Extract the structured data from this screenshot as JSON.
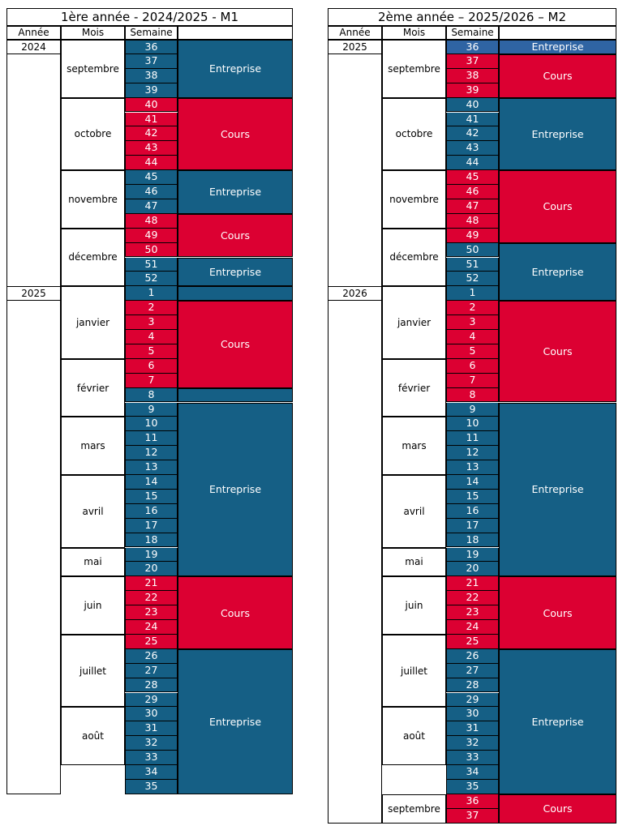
{
  "colors": {
    "entreprise": "#155f85",
    "cours": "#dc0032",
    "entreprise_light": "#2f64a3"
  },
  "headers": {
    "annee": "Année",
    "mois": "Mois",
    "semaine": "Semaine"
  },
  "calendars": [
    {
      "title": "1ère année - 2024/2025 - M1",
      "years": [
        {
          "label": "2024",
          "start": 0,
          "boxed": true
        },
        {
          "label": "2025",
          "start": 17,
          "boxed": false
        }
      ],
      "months": [
        {
          "label": "septembre",
          "start": 0,
          "span": 4
        },
        {
          "label": "octobre",
          "start": 4,
          "span": 5
        },
        {
          "label": "novembre",
          "start": 9,
          "span": 4
        },
        {
          "label": "décembre",
          "start": 13,
          "span": 4
        },
        {
          "label": "janvier",
          "start": 17,
          "span": 5
        },
        {
          "label": "février",
          "start": 22,
          "span": 4
        },
        {
          "label": "mars",
          "start": 26,
          "span": 4
        },
        {
          "label": "avril",
          "start": 30,
          "span": 5
        },
        {
          "label": "mai",
          "start": 35,
          "span": 2
        },
        {
          "label": "juin",
          "start": 37,
          "span": 4
        },
        {
          "label": "juillet",
          "start": 41,
          "span": 5
        },
        {
          "label": "août",
          "start": 46,
          "span": 4
        }
      ],
      "weeks": [
        "36",
        "37",
        "38",
        "39",
        "40",
        "41",
        "42",
        "43",
        "44",
        "45",
        "46",
        "47",
        "48",
        "49",
        "50",
        "51",
        "52",
        "1",
        "2",
        "3",
        "4",
        "5",
        "6",
        "7",
        "8",
        "9",
        "10",
        "11",
        "12",
        "13",
        "14",
        "15",
        "16",
        "17",
        "18",
        "19",
        "20",
        "21",
        "22",
        "23",
        "24",
        "25",
        "26",
        "27",
        "28",
        "29",
        "30",
        "31",
        "32",
        "33",
        "34",
        "35"
      ],
      "week_types": [
        "E",
        "E",
        "E",
        "E",
        "C",
        "C",
        "C",
        "C",
        "C",
        "E",
        "E",
        "E",
        "C",
        "C",
        "C",
        "E",
        "E",
        "E",
        "C",
        "C",
        "C",
        "C",
        "C",
        "C",
        "E",
        "E",
        "E",
        "E",
        "E",
        "E",
        "E",
        "E",
        "E",
        "E",
        "E",
        "E",
        "E",
        "C",
        "C",
        "C",
        "C",
        "C",
        "E",
        "E",
        "E",
        "E",
        "E",
        "E",
        "E",
        "E",
        "E",
        "E"
      ],
      "periods": [
        {
          "label": "Entreprise",
          "type": "E",
          "start": 0,
          "span": 4
        },
        {
          "label": "Cours",
          "type": "C",
          "start": 4,
          "span": 5
        },
        {
          "label": "Entreprise",
          "type": "E",
          "start": 9,
          "span": 3
        },
        {
          "label": "Cours",
          "type": "C",
          "start": 12,
          "span": 3
        },
        {
          "label": "Entreprise",
          "type": "E",
          "start": 15,
          "span": 2
        },
        {
          "label": "",
          "type": "E",
          "start": 17,
          "span": 1
        },
        {
          "label": "Cours",
          "type": "C",
          "start": 18,
          "span": 6
        },
        {
          "label": "",
          "type": "E",
          "start": 24,
          "span": 1
        },
        {
          "label": "Entreprise",
          "type": "E",
          "start": 25,
          "span": 12
        },
        {
          "label": "Cours",
          "type": "C",
          "start": 37,
          "span": 5
        },
        {
          "label": "Entreprise",
          "type": "E",
          "start": 42,
          "span": 10
        }
      ]
    },
    {
      "title": "2ème année – 2025/2026 – M2",
      "years": [
        {
          "label": "2025",
          "start": 0,
          "boxed": false
        },
        {
          "label": "2026",
          "start": 17,
          "boxed": false
        }
      ],
      "months": [
        {
          "label": "septembre",
          "start": 0,
          "span": 4
        },
        {
          "label": "octobre",
          "start": 4,
          "span": 5
        },
        {
          "label": "novembre",
          "start": 9,
          "span": 4
        },
        {
          "label": "décembre",
          "start": 13,
          "span": 4
        },
        {
          "label": "janvier",
          "start": 17,
          "span": 5
        },
        {
          "label": "février",
          "start": 22,
          "span": 4
        },
        {
          "label": "mars",
          "start": 26,
          "span": 4
        },
        {
          "label": "avril",
          "start": 30,
          "span": 5
        },
        {
          "label": "mai",
          "start": 35,
          "span": 2
        },
        {
          "label": "juin",
          "start": 37,
          "span": 4
        },
        {
          "label": "juillet",
          "start": 41,
          "span": 5
        },
        {
          "label": "août",
          "start": 46,
          "span": 4
        },
        {
          "label": "septembre",
          "start": 52,
          "span": 2
        }
      ],
      "weeks": [
        "36",
        "37",
        "38",
        "39",
        "40",
        "41",
        "42",
        "43",
        "44",
        "45",
        "46",
        "47",
        "48",
        "49",
        "50",
        "51",
        "52",
        "1",
        "2",
        "3",
        "4",
        "5",
        "6",
        "7",
        "8",
        "9",
        "10",
        "11",
        "12",
        "13",
        "14",
        "15",
        "16",
        "17",
        "18",
        "19",
        "20",
        "21",
        "22",
        "23",
        "24",
        "25",
        "26",
        "27",
        "28",
        "29",
        "30",
        "31",
        "32",
        "33",
        "34",
        "35",
        "36",
        "37"
      ],
      "week_types": [
        "L",
        "C",
        "C",
        "C",
        "E",
        "E",
        "E",
        "E",
        "E",
        "C",
        "C",
        "C",
        "C",
        "C",
        "E",
        "E",
        "E",
        "E",
        "C",
        "C",
        "C",
        "C",
        "C",
        "C",
        "C",
        "E",
        "E",
        "E",
        "E",
        "E",
        "E",
        "E",
        "E",
        "E",
        "E",
        "E",
        "E",
        "C",
        "C",
        "C",
        "C",
        "C",
        "E",
        "E",
        "E",
        "E",
        "E",
        "E",
        "E",
        "E",
        "E",
        "E",
        "C",
        "C"
      ],
      "periods": [
        {
          "label": "Entreprise",
          "type": "L",
          "start": 0,
          "span": 1
        },
        {
          "label": "Cours",
          "type": "C",
          "start": 1,
          "span": 3
        },
        {
          "label": "Entreprise",
          "type": "E",
          "start": 4,
          "span": 5
        },
        {
          "label": "Cours",
          "type": "C",
          "start": 9,
          "span": 5
        },
        {
          "label": "Entreprise",
          "type": "E",
          "start": 14,
          "span": 4
        },
        {
          "label": "Cours",
          "type": "C",
          "start": 18,
          "span": 7
        },
        {
          "label": "Entreprise",
          "type": "E",
          "start": 25,
          "span": 12
        },
        {
          "label": "Cours",
          "type": "C",
          "start": 37,
          "span": 5
        },
        {
          "label": "Entreprise",
          "type": "E",
          "start": 42,
          "span": 10
        },
        {
          "label": "Cours",
          "type": "C",
          "start": 52,
          "span": 2
        }
      ]
    }
  ]
}
